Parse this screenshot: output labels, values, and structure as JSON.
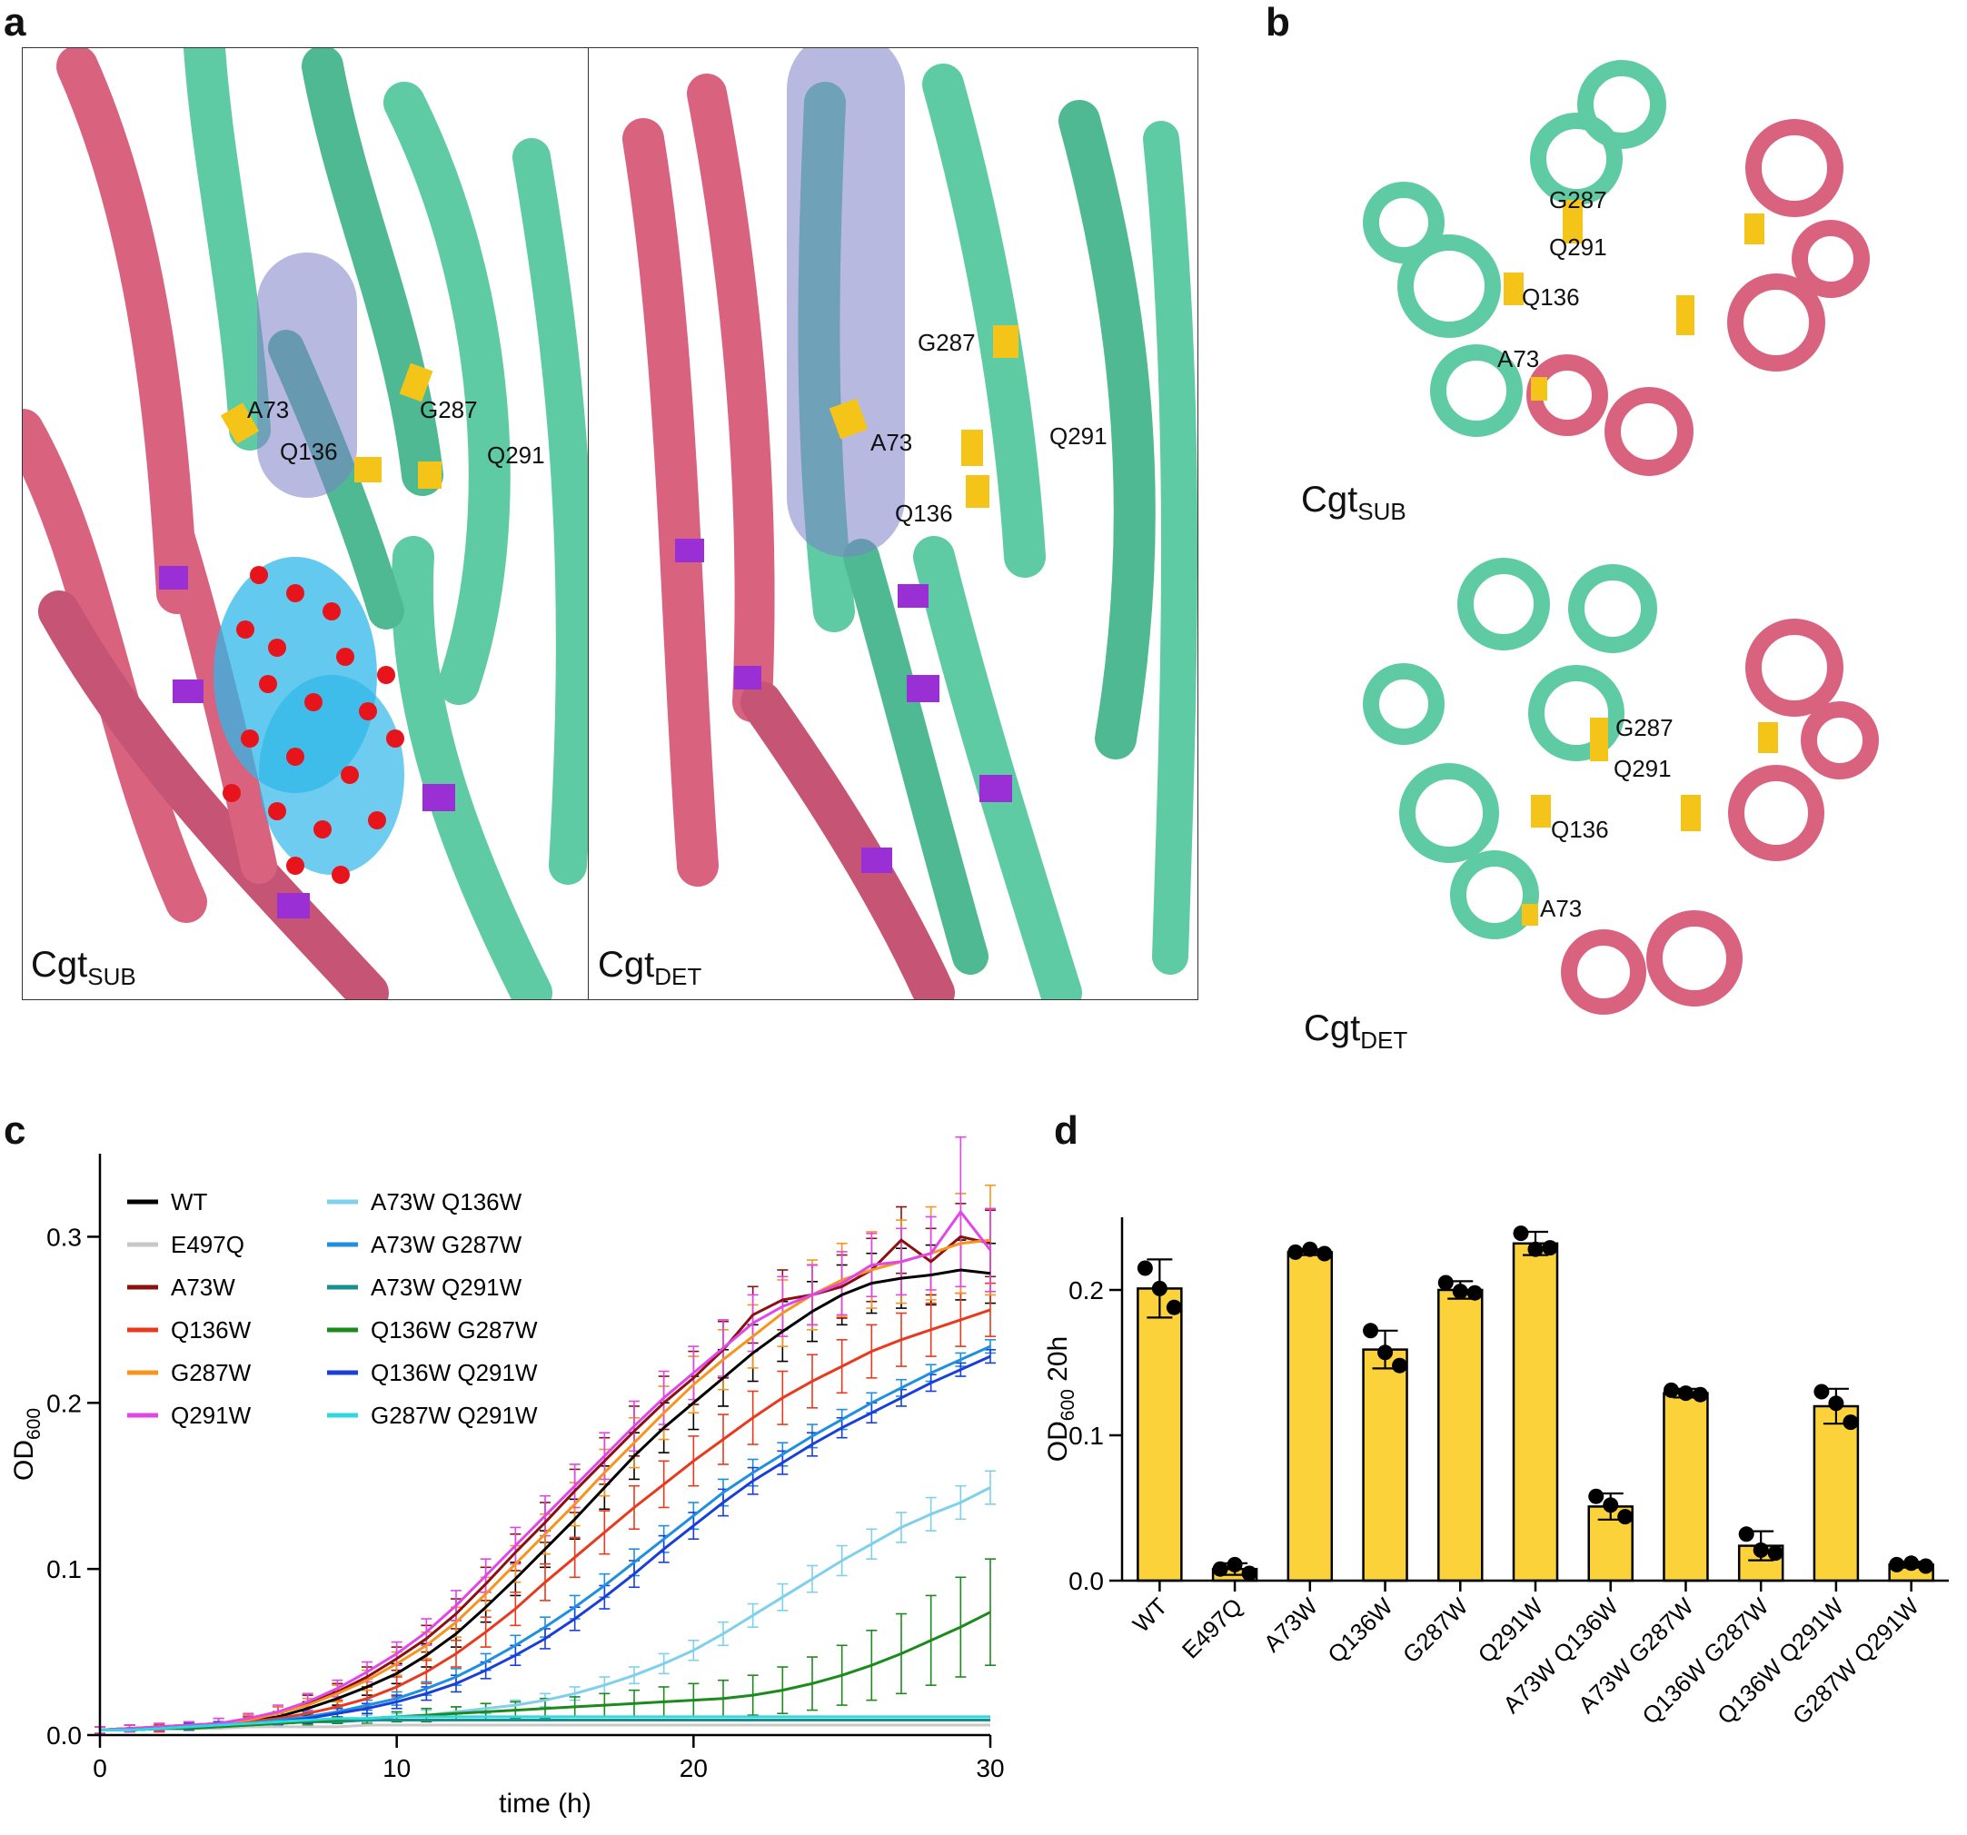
{
  "panel_labels": {
    "a": "a",
    "b": "b",
    "c": "c",
    "d": "d"
  },
  "panel_a": {
    "left_caption": {
      "main": "Cgt",
      "sub": "SUB"
    },
    "right_caption": {
      "main": "Cgt",
      "sub": "DET"
    },
    "left_residues": {
      "a73": "A73",
      "q136": "Q136",
      "g287": "G287",
      "q291": "Q291"
    },
    "right_residues": {
      "g287": "G287",
      "a73": "A73",
      "q291": "Q291",
      "q136": "Q136"
    }
  },
  "panel_b": {
    "top_caption": {
      "main": "Cgt",
      "sub": "SUB"
    },
    "bottom_caption": {
      "main": "Cgt",
      "sub": "DET"
    },
    "top_residues": {
      "g287": "G287",
      "q291": "Q291",
      "q136": "Q136",
      "a73": "A73"
    },
    "bottom_residues": {
      "g287": "G287",
      "q291": "Q291",
      "q136": "Q136",
      "a73": "A73"
    }
  },
  "colors": {
    "helix_teal": "#5fcba5",
    "helix_pink": "#d9627f",
    "highlight_purple": "#9b2fd6",
    "residue_yellow": "#f4c518",
    "ligand_blue": "#2fb7e8",
    "ligand_red": "#e8141b",
    "tunnel": "#7c80c8",
    "bar_yellow": "#fbd23a"
  },
  "chart_data": [
    {
      "type": "line",
      "panel": "c",
      "xlabel": "time (h)",
      "ylabel": {
        "main": "OD",
        "sub": "600"
      },
      "xlim": [
        0,
        30
      ],
      "ylim": [
        0,
        0.35
      ],
      "xticks": [
        0,
        10,
        20,
        30
      ],
      "yticks": [
        0.0,
        0.1,
        0.2,
        0.3
      ],
      "ytick_labels": [
        "0.0",
        "0.1",
        "0.2",
        "0.3"
      ],
      "legend_position": "top-left",
      "x": [
        0,
        1,
        2,
        3,
        4,
        5,
        6,
        7,
        8,
        9,
        10,
        11,
        12,
        13,
        14,
        15,
        16,
        17,
        18,
        19,
        20,
        21,
        22,
        23,
        24,
        25,
        26,
        27,
        28,
        29,
        30
      ],
      "series": [
        {
          "name": "WT",
          "color": "#000000",
          "values": [
            0.003,
            0.004,
            0.004,
            0.005,
            0.006,
            0.008,
            0.011,
            0.016,
            0.022,
            0.029,
            0.037,
            0.048,
            0.061,
            0.077,
            0.094,
            0.112,
            0.13,
            0.149,
            0.168,
            0.185,
            0.2,
            0.215,
            0.23,
            0.243,
            0.255,
            0.265,
            0.272,
            0.275,
            0.277,
            0.28,
            0.278
          ],
          "err": [
            0.002,
            0.002,
            0.002,
            0.002,
            0.002,
            0.003,
            0.003,
            0.004,
            0.004,
            0.005,
            0.006,
            0.007,
            0.008,
            0.009,
            0.01,
            0.011,
            0.012,
            0.013,
            0.014,
            0.015,
            0.016,
            0.017,
            0.017,
            0.018,
            0.018,
            0.018,
            0.018,
            0.018,
            0.018,
            0.018,
            0.018
          ]
        },
        {
          "name": "E497Q",
          "color": "#c8c8c8",
          "values": [
            0.003,
            0.003,
            0.004,
            0.004,
            0.004,
            0.005,
            0.005,
            0.005,
            0.005,
            0.006,
            0.006,
            0.006,
            0.006,
            0.006,
            0.006,
            0.006,
            0.006,
            0.006,
            0.006,
            0.006,
            0.006,
            0.006,
            0.006,
            0.006,
            0.006,
            0.006,
            0.006,
            0.006,
            0.006,
            0.006,
            0.006
          ],
          "err": [
            0.001,
            0.001,
            0.001,
            0.001,
            0.001,
            0.001,
            0.001,
            0.001,
            0.001,
            0.001,
            0.001,
            0.001,
            0.001,
            0.001,
            0.001,
            0.001,
            0.001,
            0.001,
            0.001,
            0.001,
            0.001,
            0.001,
            0.001,
            0.001,
            0.001,
            0.001,
            0.001,
            0.001,
            0.001,
            0.001,
            0.001
          ]
        },
        {
          "name": "A73W",
          "color": "#8b1010",
          "values": [
            0.003,
            0.004,
            0.005,
            0.006,
            0.007,
            0.009,
            0.013,
            0.019,
            0.026,
            0.035,
            0.046,
            0.058,
            0.073,
            0.091,
            0.11,
            0.128,
            0.147,
            0.165,
            0.183,
            0.2,
            0.215,
            0.232,
            0.253,
            0.262,
            0.265,
            0.27,
            0.28,
            0.298,
            0.285,
            0.3,
            0.296
          ],
          "err": [
            0.002,
            0.002,
            0.002,
            0.002,
            0.003,
            0.003,
            0.004,
            0.005,
            0.005,
            0.006,
            0.007,
            0.008,
            0.009,
            0.01,
            0.011,
            0.012,
            0.013,
            0.014,
            0.015,
            0.016,
            0.016,
            0.017,
            0.017,
            0.018,
            0.018,
            0.019,
            0.019,
            0.02,
            0.02,
            0.02,
            0.02
          ]
        },
        {
          "name": "Q136W",
          "color": "#e83a1e",
          "values": [
            0.003,
            0.003,
            0.004,
            0.005,
            0.006,
            0.008,
            0.01,
            0.013,
            0.017,
            0.022,
            0.029,
            0.038,
            0.049,
            0.062,
            0.076,
            0.092,
            0.107,
            0.122,
            0.137,
            0.151,
            0.165,
            0.178,
            0.191,
            0.203,
            0.213,
            0.222,
            0.231,
            0.238,
            0.244,
            0.25,
            0.256
          ],
          "err": [
            0.001,
            0.001,
            0.002,
            0.002,
            0.002,
            0.003,
            0.003,
            0.004,
            0.004,
            0.005,
            0.006,
            0.007,
            0.008,
            0.009,
            0.01,
            0.011,
            0.012,
            0.013,
            0.013,
            0.014,
            0.015,
            0.015,
            0.016,
            0.016,
            0.016,
            0.016,
            0.016,
            0.016,
            0.016,
            0.016,
            0.016
          ]
        },
        {
          "name": "G287W",
          "color": "#f7941d",
          "values": [
            0.003,
            0.004,
            0.005,
            0.006,
            0.007,
            0.009,
            0.013,
            0.018,
            0.025,
            0.033,
            0.043,
            0.054,
            0.068,
            0.085,
            0.103,
            0.121,
            0.139,
            0.158,
            0.176,
            0.194,
            0.211,
            0.226,
            0.24,
            0.254,
            0.265,
            0.274,
            0.28,
            0.285,
            0.29,
            0.296,
            0.298
          ],
          "err": [
            0.002,
            0.002,
            0.002,
            0.002,
            0.003,
            0.003,
            0.004,
            0.004,
            0.005,
            0.006,
            0.007,
            0.008,
            0.009,
            0.01,
            0.011,
            0.012,
            0.013,
            0.014,
            0.015,
            0.016,
            0.017,
            0.018,
            0.019,
            0.02,
            0.021,
            0.022,
            0.023,
            0.025,
            0.028,
            0.03,
            0.033
          ]
        },
        {
          "name": "Q291W",
          "color": "#e046e8",
          "values": [
            0.003,
            0.004,
            0.005,
            0.006,
            0.007,
            0.01,
            0.014,
            0.02,
            0.028,
            0.038,
            0.049,
            0.062,
            0.078,
            0.096,
            0.114,
            0.132,
            0.15,
            0.168,
            0.186,
            0.203,
            0.218,
            0.233,
            0.248,
            0.258,
            0.265,
            0.272,
            0.283,
            0.285,
            0.29,
            0.315,
            0.292
          ],
          "err": [
            0.002,
            0.002,
            0.002,
            0.002,
            0.003,
            0.003,
            0.004,
            0.005,
            0.005,
            0.006,
            0.007,
            0.008,
            0.009,
            0.01,
            0.011,
            0.012,
            0.013,
            0.014,
            0.015,
            0.016,
            0.016,
            0.017,
            0.017,
            0.018,
            0.018,
            0.019,
            0.019,
            0.02,
            0.022,
            0.045,
            0.025
          ]
        },
        {
          "name": "A73W Q136W",
          "color": "#7fd0ec",
          "values": [
            0.003,
            0.003,
            0.004,
            0.004,
            0.005,
            0.006,
            0.007,
            0.008,
            0.009,
            0.01,
            0.011,
            0.012,
            0.014,
            0.016,
            0.018,
            0.021,
            0.025,
            0.03,
            0.036,
            0.043,
            0.051,
            0.061,
            0.072,
            0.083,
            0.094,
            0.105,
            0.115,
            0.125,
            0.133,
            0.14,
            0.149
          ],
          "err": [
            0.001,
            0.001,
            0.001,
            0.001,
            0.001,
            0.001,
            0.002,
            0.002,
            0.002,
            0.002,
            0.002,
            0.003,
            0.003,
            0.003,
            0.003,
            0.004,
            0.004,
            0.005,
            0.005,
            0.006,
            0.006,
            0.007,
            0.007,
            0.008,
            0.008,
            0.009,
            0.009,
            0.009,
            0.01,
            0.01,
            0.01
          ]
        },
        {
          "name": "A73W G287W",
          "color": "#1f8fe0",
          "values": [
            0.003,
            0.003,
            0.004,
            0.005,
            0.006,
            0.007,
            0.009,
            0.011,
            0.014,
            0.018,
            0.022,
            0.028,
            0.035,
            0.044,
            0.054,
            0.065,
            0.077,
            0.09,
            0.104,
            0.118,
            0.132,
            0.146,
            0.158,
            0.169,
            0.18,
            0.19,
            0.2,
            0.209,
            0.218,
            0.226,
            0.234
          ],
          "err": [
            0.001,
            0.001,
            0.001,
            0.002,
            0.002,
            0.002,
            0.002,
            0.003,
            0.003,
            0.003,
            0.004,
            0.004,
            0.005,
            0.005,
            0.006,
            0.006,
            0.007,
            0.007,
            0.008,
            0.008,
            0.008,
            0.008,
            0.008,
            0.007,
            0.007,
            0.006,
            0.006,
            0.005,
            0.005,
            0.004,
            0.004
          ]
        },
        {
          "name": "A73W Q291W",
          "color": "#1a8f8f",
          "values": [
            0.003,
            0.003,
            0.004,
            0.004,
            0.005,
            0.006,
            0.007,
            0.008,
            0.008,
            0.009,
            0.009,
            0.009,
            0.009,
            0.009,
            0.009,
            0.009,
            0.009,
            0.009,
            0.009,
            0.009,
            0.009,
            0.009,
            0.009,
            0.009,
            0.009,
            0.009,
            0.009,
            0.009,
            0.009,
            0.009,
            0.009
          ],
          "err": [
            0.001,
            0.001,
            0.001,
            0.001,
            0.001,
            0.001,
            0.001,
            0.001,
            0.001,
            0.001,
            0.001,
            0.001,
            0.001,
            0.001,
            0.001,
            0.001,
            0.001,
            0.001,
            0.001,
            0.001,
            0.001,
            0.001,
            0.001,
            0.001,
            0.001,
            0.001,
            0.001,
            0.001,
            0.001,
            0.001,
            0.001
          ]
        },
        {
          "name": "Q136W G287W",
          "color": "#1d8a1d",
          "values": [
            0.003,
            0.003,
            0.004,
            0.004,
            0.005,
            0.006,
            0.007,
            0.008,
            0.009,
            0.01,
            0.011,
            0.012,
            0.013,
            0.014,
            0.015,
            0.016,
            0.017,
            0.018,
            0.019,
            0.02,
            0.021,
            0.022,
            0.024,
            0.027,
            0.031,
            0.036,
            0.042,
            0.049,
            0.057,
            0.065,
            0.074
          ],
          "err": [
            0.001,
            0.001,
            0.001,
            0.001,
            0.001,
            0.001,
            0.002,
            0.002,
            0.002,
            0.003,
            0.003,
            0.004,
            0.004,
            0.005,
            0.005,
            0.006,
            0.006,
            0.007,
            0.008,
            0.009,
            0.01,
            0.011,
            0.012,
            0.014,
            0.016,
            0.018,
            0.021,
            0.024,
            0.027,
            0.03,
            0.032
          ]
        },
        {
          "name": "Q136W Q291W",
          "color": "#1a3fd9",
          "values": [
            0.003,
            0.003,
            0.004,
            0.005,
            0.006,
            0.007,
            0.008,
            0.01,
            0.013,
            0.016,
            0.02,
            0.025,
            0.031,
            0.039,
            0.048,
            0.058,
            0.07,
            0.083,
            0.097,
            0.112,
            0.126,
            0.14,
            0.153,
            0.164,
            0.175,
            0.185,
            0.194,
            0.203,
            0.212,
            0.22,
            0.228
          ],
          "err": [
            0.001,
            0.001,
            0.001,
            0.002,
            0.002,
            0.002,
            0.002,
            0.003,
            0.003,
            0.003,
            0.004,
            0.004,
            0.005,
            0.005,
            0.006,
            0.006,
            0.007,
            0.007,
            0.008,
            0.008,
            0.008,
            0.008,
            0.008,
            0.007,
            0.007,
            0.006,
            0.006,
            0.005,
            0.005,
            0.004,
            0.004
          ]
        },
        {
          "name": "G287W Q291W",
          "color": "#2fd8e0",
          "values": [
            0.003,
            0.003,
            0.004,
            0.005,
            0.006,
            0.007,
            0.008,
            0.009,
            0.01,
            0.01,
            0.011,
            0.011,
            0.011,
            0.011,
            0.011,
            0.011,
            0.011,
            0.011,
            0.011,
            0.011,
            0.011,
            0.011,
            0.011,
            0.011,
            0.011,
            0.011,
            0.011,
            0.011,
            0.011,
            0.011,
            0.011
          ],
          "err": [
            0.001,
            0.001,
            0.001,
            0.001,
            0.001,
            0.001,
            0.001,
            0.001,
            0.001,
            0.001,
            0.001,
            0.001,
            0.001,
            0.001,
            0.001,
            0.001,
            0.001,
            0.001,
            0.001,
            0.001,
            0.001,
            0.001,
            0.001,
            0.001,
            0.001,
            0.001,
            0.001,
            0.001,
            0.001,
            0.001,
            0.001
          ]
        }
      ]
    },
    {
      "type": "bar",
      "panel": "d",
      "ylabel": {
        "main": "OD",
        "sub": "600",
        "suffix": " 20h"
      },
      "ylim": [
        0,
        0.25
      ],
      "yticks": [
        0.0,
        0.1,
        0.2
      ],
      "ytick_labels": [
        "0.0",
        "0.1",
        "0.2"
      ],
      "bar_color": "#fbd23a",
      "categories": [
        "WT",
        "E497Q",
        "A73W",
        "Q136W",
        "G287W",
        "Q291W",
        "A73W Q136W",
        "A73W G287W",
        "Q136W G287W",
        "Q136W Q291W",
        "G287W Q291W"
      ],
      "values": [
        0.201,
        0.008,
        0.226,
        0.159,
        0.2,
        0.232,
        0.051,
        0.129,
        0.024,
        0.12,
        0.011
      ],
      "err": [
        0.02,
        0.004,
        0.002,
        0.013,
        0.006,
        0.008,
        0.009,
        0.003,
        0.01,
        0.012,
        0.002
      ],
      "points": [
        [
          0.215,
          0.201,
          0.188
        ],
        [
          0.008,
          0.011,
          0.005
        ],
        [
          0.226,
          0.228,
          0.225
        ],
        [
          0.172,
          0.157,
          0.148
        ],
        [
          0.205,
          0.199,
          0.198
        ],
        [
          0.239,
          0.228,
          0.229
        ],
        [
          0.058,
          0.052,
          0.044
        ],
        [
          0.131,
          0.129,
          0.128
        ],
        [
          0.032,
          0.021,
          0.019
        ],
        [
          0.13,
          0.122,
          0.109
        ],
        [
          0.011,
          0.012,
          0.01
        ]
      ]
    }
  ]
}
